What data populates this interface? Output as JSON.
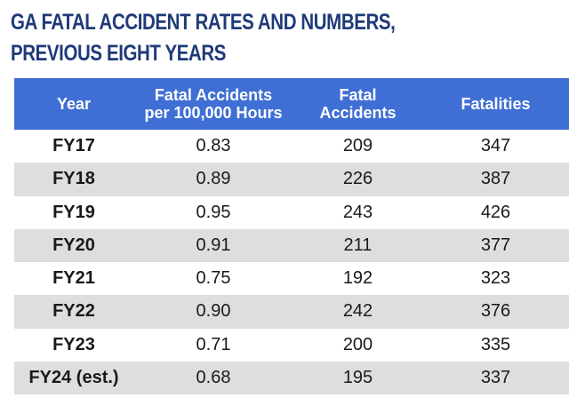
{
  "title": {
    "line1": "GA FATAL ACCIDENT RATES AND NUMBERS,",
    "line2": "PREVIOUS EIGHT YEARS"
  },
  "table": {
    "headers": {
      "year": "Year",
      "rate_line1": "Fatal Accidents",
      "rate_line2": "per 100,000 Hours",
      "accidents_line1": "Fatal",
      "accidents_line2": "Accidents",
      "fatalities": "Fatalities"
    },
    "rows": [
      {
        "year": "FY17",
        "rate": "0.83",
        "accidents": "209",
        "fatalities": "347"
      },
      {
        "year": "FY18",
        "rate": "0.89",
        "accidents": "226",
        "fatalities": "387"
      },
      {
        "year": "FY19",
        "rate": "0.95",
        "accidents": "243",
        "fatalities": "426"
      },
      {
        "year": "FY20",
        "rate": "0.91",
        "accidents": "211",
        "fatalities": "377"
      },
      {
        "year": "FY21",
        "rate": "0.75",
        "accidents": "192",
        "fatalities": "323"
      },
      {
        "year": "FY22",
        "rate": "0.90",
        "accidents": "242",
        "fatalities": "376"
      },
      {
        "year": "FY23",
        "rate": "0.71",
        "accidents": "200",
        "fatalities": "335"
      },
      {
        "year": "FY24 (est.)",
        "rate": "0.68",
        "accidents": "195",
        "fatalities": "337"
      }
    ]
  }
}
